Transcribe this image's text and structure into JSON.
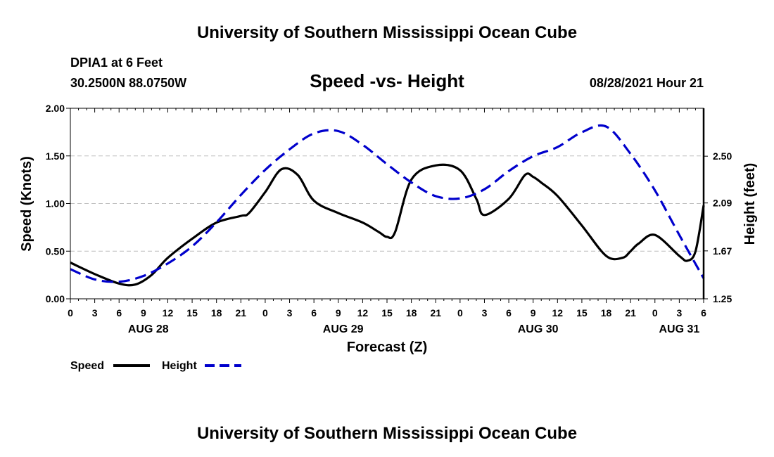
{
  "page": {
    "header_title": "University of Southern Mississippi Ocean Cube",
    "footer_title": "University of Southern Mississippi Ocean Cube",
    "station": "DPIA1 at 6 Feet",
    "coords": "30.2500N  88.0750W",
    "datetime": "08/28/2021 Hour 21"
  },
  "chart_data": {
    "type": "line",
    "title": "Speed -vs- Height",
    "xlabel": "Forecast (Z)",
    "ylabel": "Speed (Knots)",
    "y2label": "Height (feet)",
    "ylim": [
      0,
      2
    ],
    "y2lim": [
      1.25,
      2.92
    ],
    "xlim": [
      0,
      78
    ],
    "grid": true,
    "yticks": [
      "0.00",
      "0.50",
      "1.00",
      "1.50",
      "2.00"
    ],
    "y2ticks": [
      "1.25",
      "1.67",
      "2.09",
      "2.50"
    ],
    "xticks": [
      "0",
      "3",
      "6",
      "9",
      "12",
      "15",
      "18",
      "21",
      "0",
      "3",
      "6",
      "9",
      "12",
      "15",
      "18",
      "21",
      "0",
      "3",
      "6",
      "9",
      "12",
      "15",
      "18",
      "21",
      "0",
      "3",
      "6"
    ],
    "date_labels": [
      {
        "text": "AUG 28",
        "hour": 9.6
      },
      {
        "text": "AUG 29",
        "hour": 33.6
      },
      {
        "text": "AUG 30",
        "hour": 57.6
      },
      {
        "text": "AUG 31",
        "hour": 75
      }
    ],
    "legend": [
      {
        "name": "Speed",
        "color": "#000000",
        "style": "solid"
      },
      {
        "name": "Height",
        "color": "#0000cc",
        "style": "dashed"
      }
    ],
    "series": [
      {
        "name": "Speed",
        "axis": "left",
        "color": "#000000",
        "x": [
          0,
          3,
          6,
          8,
          10,
          12,
          15,
          18,
          21,
          22,
          24,
          26,
          28,
          30,
          33,
          36,
          38,
          39,
          40,
          42,
          45,
          48,
          50,
          51,
          54,
          56,
          57,
          58,
          60,
          63,
          66,
          68,
          69,
          70,
          72,
          75,
          76,
          77,
          78
        ],
        "values": [
          0.38,
          0.26,
          0.16,
          0.15,
          0.25,
          0.43,
          0.63,
          0.8,
          0.87,
          0.9,
          1.12,
          1.36,
          1.3,
          1.03,
          0.9,
          0.8,
          0.7,
          0.65,
          0.7,
          1.25,
          1.4,
          1.35,
          1.05,
          0.88,
          1.05,
          1.3,
          1.28,
          1.22,
          1.08,
          0.77,
          0.45,
          0.43,
          0.5,
          0.58,
          0.67,
          0.45,
          0.4,
          0.5,
          0.98
        ]
      },
      {
        "name": "Height",
        "axis": "right",
        "color": "#0000cc",
        "x": [
          0,
          3,
          6,
          9,
          12,
          15,
          18,
          21,
          24,
          27,
          30,
          33,
          36,
          39,
          42,
          45,
          48,
          51,
          54,
          57,
          60,
          63,
          66,
          69,
          72,
          75,
          78
        ],
        "values": [
          1.51,
          1.42,
          1.4,
          1.45,
          1.56,
          1.71,
          1.92,
          2.16,
          2.38,
          2.56,
          2.7,
          2.72,
          2.6,
          2.43,
          2.27,
          2.15,
          2.13,
          2.21,
          2.37,
          2.5,
          2.58,
          2.71,
          2.76,
          2.52,
          2.2,
          1.81,
          1.43
        ]
      }
    ]
  }
}
